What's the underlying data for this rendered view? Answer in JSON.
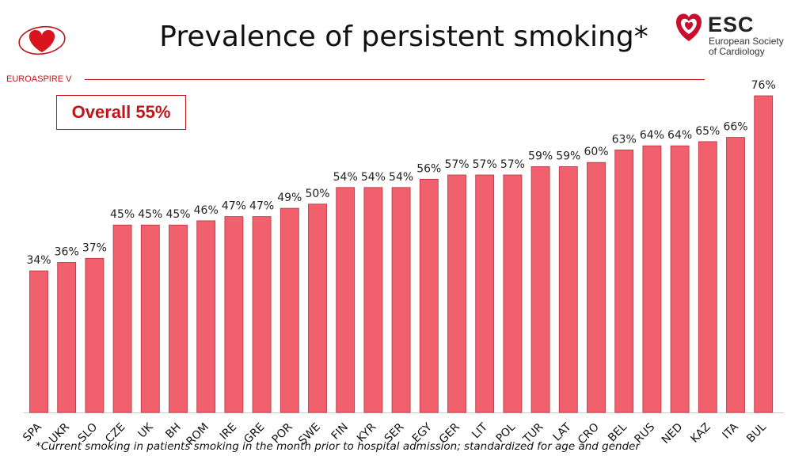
{
  "header": {
    "title": "Prevalence of persistent smoking*",
    "study_label": "EUROASPIRE V",
    "overall_label": "Overall 55%"
  },
  "esc_logo": {
    "name": "ESC",
    "line1": "European Society",
    "line2": "of Cardiology"
  },
  "footnote": "*Current smoking in patients smoking in the month prior to hospital admission; standardized for age and gender",
  "colors": {
    "bar_fill": "#f0606d",
    "bar_stroke": "#b8323d",
    "accent_red": "#c0151b"
  },
  "icons": {
    "left_logo": "heart-logo-icon",
    "esc_logo": "esc-heart-icon"
  },
  "chart_data": {
    "type": "bar",
    "categories": [
      "SPA",
      "UKR",
      "SLO",
      "CZE",
      "UK",
      "BH",
      "ROM",
      "IRE",
      "GRE",
      "POR",
      "SWE",
      "FIN",
      "KYR",
      "SER",
      "EGY",
      "GER",
      "LIT",
      "POL",
      "TUR",
      "LAT",
      "CRO",
      "BEL",
      "RUS",
      "NED",
      "KAZ",
      "ITA",
      "BUL"
    ],
    "values": [
      34,
      36,
      37,
      45,
      45,
      45,
      46,
      47,
      47,
      49,
      50,
      54,
      54,
      54,
      56,
      57,
      57,
      57,
      59,
      59,
      60,
      63,
      64,
      64,
      65,
      66,
      76
    ],
    "value_labels": [
      "34%",
      "36%",
      "37%",
      "45%",
      "45%",
      "45%",
      "46%",
      "47%",
      "47%",
      "49%",
      "50%",
      "54%",
      "54%",
      "54%",
      "56%",
      "57%",
      "57%",
      "57%",
      "59%",
      "59%",
      "60%",
      "63%",
      "64%",
      "64%",
      "65%",
      "66%",
      "76%"
    ],
    "ylim": [
      0,
      76
    ],
    "grid": false,
    "legend": "none"
  }
}
